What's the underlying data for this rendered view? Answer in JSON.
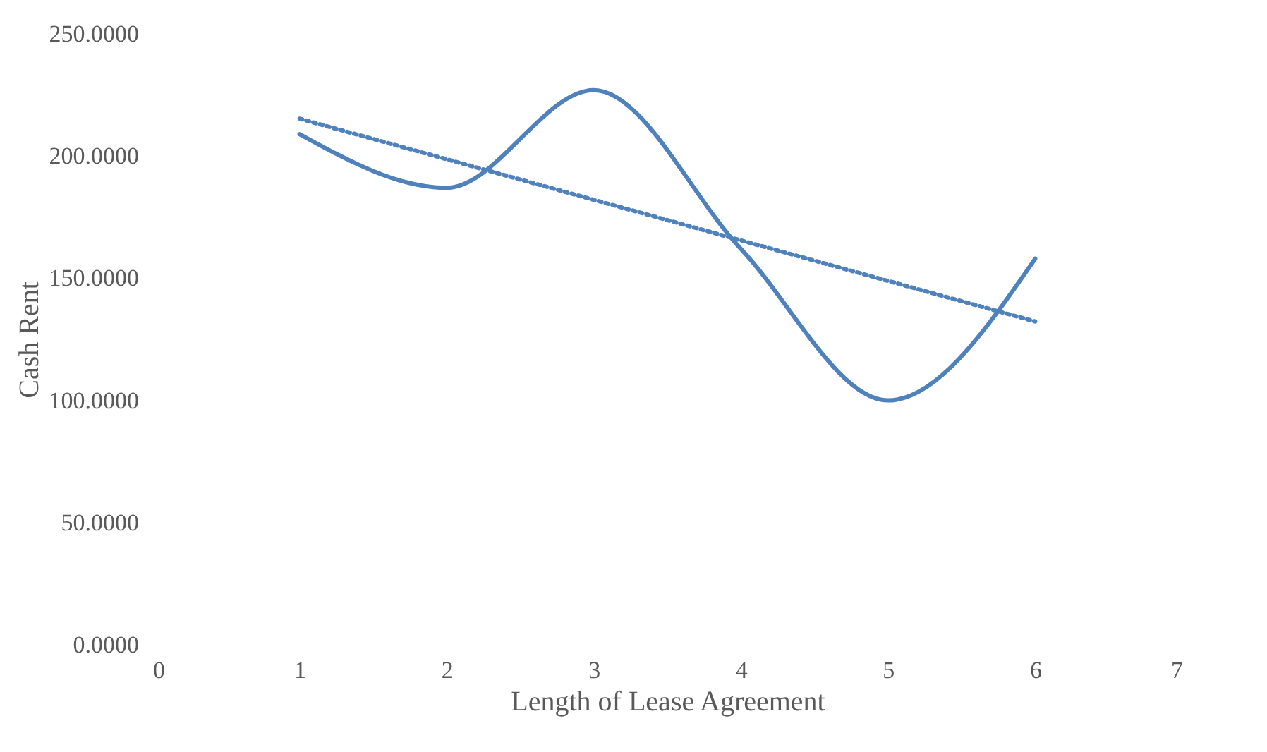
{
  "chart_data": {
    "type": "line",
    "xlabel": "Length of Lease Agreement",
    "ylabel": "Cash Rent",
    "x": [
      1,
      2,
      3,
      4,
      5,
      6
    ],
    "series": [
      {
        "color": "#4f81bd",
        "values": [
          209,
          187,
          227,
          162,
          100,
          158
        ],
        "line_style": "solid"
      },
      {
        "type": "line",
        "color": "#4f81bd",
        "x": [
          1,
          6
        ],
        "values": [
          215.3,
          132.3
        ],
        "line_style": "dotted"
      }
    ],
    "xlim": [
      0,
      7
    ],
    "xticks": [
      0,
      1,
      2,
      3,
      4,
      5,
      6,
      7
    ],
    "ylim": [
      0,
      250
    ],
    "yticks": [
      {
        "value": 0,
        "label": "0.0000"
      },
      {
        "value": 50,
        "label": "50.0000"
      },
      {
        "value": 100,
        "label": "100.0000"
      },
      {
        "value": 150,
        "label": "150.0000"
      },
      {
        "value": 200,
        "label": "200.0000"
      },
      {
        "value": 250,
        "label": "250.0000"
      }
    ],
    "grid": false,
    "marker": "none"
  }
}
